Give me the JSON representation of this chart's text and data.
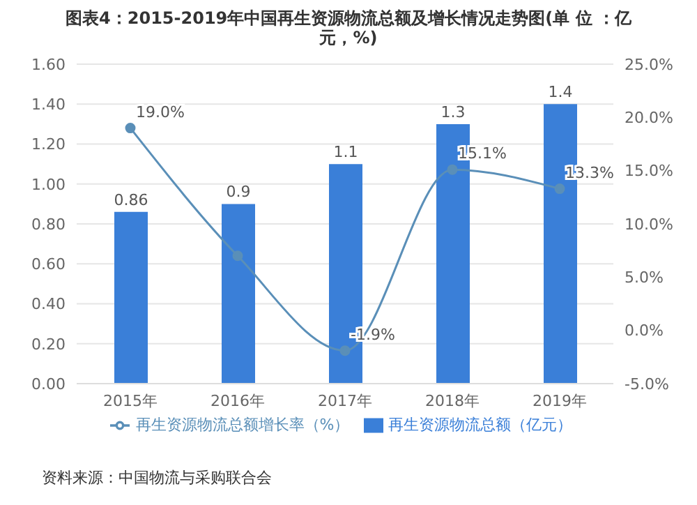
{
  "chart_data": {
    "type": "bar",
    "title": "图表4：2015-2019年中国再生资源物流总额及增长情况走势图(单 位 ：亿元，%)",
    "categories": [
      "2015年",
      "2016年",
      "2017年",
      "2018年",
      "2019年"
    ],
    "series": [
      {
        "name": "再生资源物流总额（亿元）",
        "color": "#3a7fd8",
        "values": [
          0.86,
          0.9,
          1.1,
          1.3,
          1.4
        ],
        "data_labels": true
      },
      {
        "name": "再生资源物流总额增长率（%）",
        "type": "line",
        "axis": "y2",
        "color": "#5a8fb8",
        "values": [
          19.0,
          7,
          -1.9,
          15.1,
          13.3
        ],
        "value_labels": [
          "19.0%",
          null,
          "-1.9%",
          "15.1%",
          "13.3%"
        ],
        "marker": "circle"
      }
    ],
    "ylim": [
      0,
      1.6
    ],
    "yticks": [
      {
        "value": 0,
        "label": "0.00"
      },
      {
        "value": 0.2,
        "label": "0.20"
      },
      {
        "value": 0.4,
        "label": "0.40"
      },
      {
        "value": 0.6,
        "label": "0.60"
      },
      {
        "value": 0.8,
        "label": "0.80"
      },
      {
        "value": 1.0,
        "label": "1.00"
      },
      {
        "value": 1.2,
        "label": "1.20"
      },
      {
        "value": 1.4,
        "label": "1.40"
      },
      {
        "value": 1.6,
        "label": "1.60"
      }
    ],
    "y2lim": [
      -5,
      25
    ],
    "y2ticks": [
      {
        "value": -5,
        "label": "-5.0%"
      },
      {
        "value": 0,
        "label": "0.0%"
      },
      {
        "value": 5,
        "label": "5.0%"
      },
      {
        "value": 10,
        "label": "10.0%"
      },
      {
        "value": 15,
        "label": "15.0%"
      },
      {
        "value": 20,
        "label": "20.0%"
      },
      {
        "value": 25,
        "label": "25.0%"
      }
    ],
    "grid": "y",
    "legend": "bottom",
    "annotations": [
      "资料来源：中国物流与采购联合会"
    ]
  }
}
